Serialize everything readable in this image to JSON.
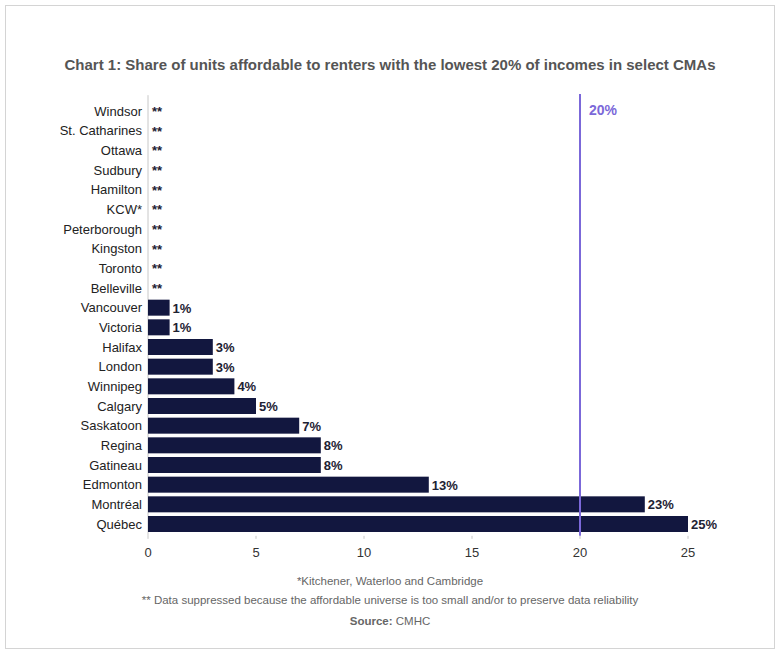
{
  "chart_data": {
    "type": "bar",
    "orientation": "horizontal",
    "title": "Chart 1: Share of units affordable to renters with the lowest 20% of incomes in select CMAs",
    "categories": [
      "Windsor",
      "St. Catharines",
      "Ottawa",
      "Sudbury",
      "Hamilton",
      "KCW*",
      "Peterborough",
      "Kingston",
      "Toronto",
      "Belleville",
      "Vancouver",
      "Victoria",
      "Halifax",
      "London",
      "Winnipeg",
      "Calgary",
      "Saskatoon",
      "Regina",
      "Gatineau",
      "Edmonton",
      "Montréal",
      "Québec"
    ],
    "values": [
      null,
      null,
      null,
      null,
      null,
      null,
      null,
      null,
      null,
      null,
      1,
      1,
      3,
      3,
      4,
      5,
      7,
      8,
      8,
      13,
      23,
      25
    ],
    "value_labels": [
      "**",
      "**",
      "**",
      "**",
      "**",
      "**",
      "**",
      "**",
      "**",
      "**",
      "1%",
      "1%",
      "3%",
      "3%",
      "4%",
      "5%",
      "7%",
      "8%",
      "8%",
      "13%",
      "23%",
      "25%"
    ],
    "color": "#12173f",
    "xlim": [
      0,
      25
    ],
    "xticks": [
      0,
      5,
      10,
      15,
      20,
      25
    ],
    "grid": false,
    "data_labels": true,
    "annotations": [
      {
        "value": 20,
        "label": "20%",
        "color": "#7b68d9"
      }
    ],
    "notes": [
      "*Kitchener, Waterloo and Cambridge",
      "** Data suppressed because the affordable universe is too small and/or to preserve data reliability"
    ],
    "source": {
      "label": "Source:",
      "text": "CMHC"
    }
  }
}
